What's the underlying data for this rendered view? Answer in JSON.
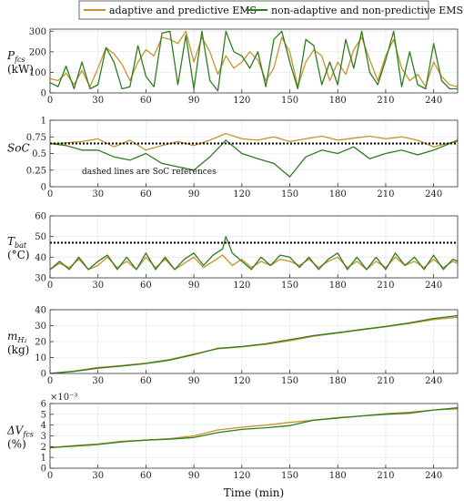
{
  "figure": {
    "xlabel": "Time (min)",
    "legend_position": "top-center",
    "legend": [
      {
        "name": "adaptive and predictive EMS",
        "color": "#c8932a"
      },
      {
        "name": "non-adaptive and non-predictive EMS",
        "color": "#2e7d1f"
      }
    ],
    "reference_color": "#000000",
    "grid": true
  },
  "chart_data": [
    {
      "type": "line",
      "id": "pfcs",
      "ylabel_main": "P",
      "ylabel_sub": "fcs",
      "ylabel_unit": "(kW)",
      "xlim": [
        0,
        255
      ],
      "ylim": [
        0,
        310
      ],
      "xticks": [
        0,
        30,
        60,
        90,
        120,
        150,
        180,
        210,
        240
      ],
      "yticks": [
        0,
        100,
        200,
        300
      ],
      "series": [
        {
          "name": "adaptive and predictive EMS",
          "x": [
            0,
            5,
            10,
            15,
            20,
            25,
            30,
            35,
            40,
            45,
            50,
            55,
            60,
            65,
            70,
            75,
            80,
            85,
            90,
            95,
            100,
            105,
            110,
            115,
            120,
            125,
            130,
            135,
            140,
            145,
            150,
            155,
            160,
            165,
            170,
            175,
            180,
            185,
            190,
            195,
            200,
            205,
            210,
            215,
            220,
            225,
            230,
            235,
            240,
            245,
            250,
            255
          ],
          "y": [
            70,
            60,
            95,
            40,
            110,
            30,
            120,
            220,
            190,
            140,
            60,
            150,
            210,
            180,
            270,
            260,
            240,
            300,
            150,
            270,
            200,
            90,
            180,
            120,
            150,
            200,
            160,
            60,
            120,
            270,
            200,
            30,
            150,
            210,
            180,
            60,
            150,
            90,
            210,
            270,
            160,
            60,
            180,
            260,
            120,
            60,
            90,
            30,
            150,
            80,
            40,
            30
          ]
        },
        {
          "name": "non-adaptive and non-predictive EMS",
          "x": [
            0,
            5,
            10,
            15,
            20,
            25,
            30,
            35,
            40,
            45,
            50,
            55,
            60,
            65,
            70,
            75,
            80,
            85,
            90,
            95,
            100,
            105,
            110,
            115,
            120,
            125,
            130,
            135,
            140,
            145,
            150,
            155,
            160,
            165,
            170,
            175,
            180,
            185,
            190,
            195,
            200,
            205,
            210,
            215,
            220,
            225,
            230,
            235,
            240,
            245,
            250,
            255
          ],
          "y": [
            50,
            30,
            130,
            20,
            150,
            20,
            40,
            220,
            150,
            20,
            30,
            230,
            80,
            30,
            290,
            300,
            40,
            280,
            20,
            300,
            60,
            10,
            300,
            200,
            180,
            120,
            200,
            30,
            260,
            300,
            150,
            20,
            260,
            230,
            40,
            150,
            40,
            260,
            120,
            300,
            100,
            40,
            160,
            300,
            30,
            200,
            40,
            20,
            240,
            60,
            20,
            20
          ]
        }
      ]
    },
    {
      "type": "line",
      "id": "soc",
      "ylabel_main": "SoC",
      "ylabel_sub": "",
      "ylabel_unit": "",
      "annotation": "dashed lines are SoC references",
      "xlim": [
        0,
        255
      ],
      "ylim": [
        0,
        1
      ],
      "xticks": [
        0,
        30,
        60,
        90,
        120,
        150,
        180,
        210,
        240
      ],
      "yticks": [
        0,
        0.25,
        0.5,
        0.75,
        1
      ],
      "ytick_labels": [
        "0",
        "0.25",
        "0.5",
        "0.75",
        "1"
      ],
      "reference_y": 0.65,
      "series": [
        {
          "name": "adaptive and predictive EMS",
          "x": [
            0,
            10,
            20,
            30,
            40,
            50,
            60,
            70,
            80,
            90,
            100,
            110,
            120,
            130,
            140,
            150,
            160,
            170,
            180,
            190,
            200,
            210,
            220,
            230,
            240,
            250,
            255
          ],
          "y": [
            0.65,
            0.66,
            0.68,
            0.72,
            0.6,
            0.7,
            0.55,
            0.62,
            0.68,
            0.62,
            0.7,
            0.8,
            0.72,
            0.7,
            0.75,
            0.68,
            0.72,
            0.76,
            0.7,
            0.73,
            0.76,
            0.72,
            0.75,
            0.7,
            0.6,
            0.66,
            0.68
          ]
        },
        {
          "name": "non-adaptive and non-predictive EMS",
          "x": [
            0,
            10,
            20,
            30,
            40,
            50,
            60,
            70,
            80,
            90,
            100,
            110,
            120,
            130,
            140,
            150,
            160,
            170,
            180,
            190,
            200,
            210,
            220,
            230,
            240,
            250,
            255
          ],
          "y": [
            0.65,
            0.62,
            0.55,
            0.55,
            0.45,
            0.4,
            0.5,
            0.35,
            0.3,
            0.25,
            0.45,
            0.7,
            0.5,
            0.42,
            0.35,
            0.15,
            0.45,
            0.55,
            0.5,
            0.6,
            0.42,
            0.5,
            0.55,
            0.48,
            0.55,
            0.65,
            0.7
          ]
        }
      ]
    },
    {
      "type": "line",
      "id": "tbat",
      "ylabel_main": "T",
      "ylabel_sub": "bat",
      "ylabel_unit": "(°C)",
      "xlim": [
        0,
        255
      ],
      "ylim": [
        30,
        60
      ],
      "xticks": [
        0,
        30,
        60,
        90,
        120,
        150,
        180,
        210,
        240
      ],
      "yticks": [
        30,
        40,
        50,
        60
      ],
      "reference_y": 47,
      "series": [
        {
          "name": "adaptive and predictive EMS",
          "x": [
            0,
            6,
            12,
            18,
            24,
            30,
            36,
            42,
            48,
            54,
            60,
            66,
            72,
            78,
            84,
            90,
            96,
            102,
            108,
            114,
            120,
            126,
            132,
            138,
            144,
            150,
            156,
            162,
            168,
            174,
            180,
            186,
            192,
            198,
            204,
            210,
            216,
            222,
            228,
            234,
            240,
            246,
            252,
            255
          ],
          "y": [
            34,
            37,
            35,
            39,
            34,
            36,
            40,
            35,
            38,
            34,
            40,
            35,
            39,
            34,
            37,
            40,
            35,
            38,
            41,
            36,
            39,
            35,
            38,
            36,
            39,
            38,
            36,
            39,
            35,
            38,
            40,
            35,
            38,
            34,
            38,
            35,
            40,
            36,
            38,
            35,
            39,
            35,
            38,
            37
          ]
        },
        {
          "name": "non-adaptive and non-predictive EMS",
          "x": [
            0,
            6,
            12,
            18,
            24,
            30,
            36,
            42,
            48,
            54,
            60,
            66,
            72,
            78,
            84,
            90,
            96,
            102,
            108,
            110,
            114,
            120,
            126,
            132,
            138,
            144,
            150,
            156,
            162,
            168,
            174,
            180,
            186,
            192,
            198,
            204,
            210,
            216,
            222,
            228,
            234,
            240,
            246,
            252,
            255
          ],
          "y": [
            34,
            38,
            34,
            40,
            34,
            38,
            41,
            34,
            40,
            34,
            42,
            34,
            40,
            34,
            39,
            42,
            36,
            41,
            44,
            50,
            42,
            38,
            34,
            40,
            36,
            41,
            40,
            35,
            40,
            34,
            39,
            42,
            34,
            40,
            34,
            40,
            34,
            42,
            36,
            40,
            34,
            41,
            34,
            39,
            38
          ]
        }
      ]
    },
    {
      "type": "line",
      "id": "mh2",
      "ylabel_main": "m",
      "ylabel_sub": "H₂",
      "ylabel_unit": "(kg)",
      "xlim": [
        0,
        255
      ],
      "ylim": [
        0,
        40
      ],
      "xticks": [
        0,
        30,
        60,
        90,
        120,
        150,
        180,
        210,
        240
      ],
      "yticks": [
        0,
        10,
        20,
        30,
        40
      ],
      "series": [
        {
          "name": "adaptive and predictive EMS",
          "x": [
            0,
            15,
            30,
            45,
            60,
            75,
            90,
            105,
            120,
            135,
            150,
            165,
            180,
            195,
            210,
            225,
            240,
            255
          ],
          "y": [
            0,
            1.5,
            3.8,
            5.0,
            6.5,
            8.8,
            12.2,
            15.5,
            16.6,
            18.3,
            20.5,
            23.4,
            25.4,
            27.4,
            29.3,
            31.4,
            33.8,
            35.3
          ]
        },
        {
          "name": "non-adaptive and non-predictive EMS",
          "x": [
            0,
            15,
            30,
            45,
            60,
            75,
            90,
            105,
            120,
            135,
            150,
            165,
            180,
            195,
            210,
            225,
            240,
            255
          ],
          "y": [
            0,
            1.3,
            3.3,
            4.7,
            6.2,
            8.4,
            11.8,
            15.8,
            16.9,
            18.6,
            21.2,
            23.8,
            25.6,
            27.6,
            29.5,
            31.8,
            34.5,
            36.3
          ]
        }
      ]
    },
    {
      "type": "line",
      "id": "dvfcs",
      "ylabel_main": "ΔV",
      "ylabel_sub": "fcs",
      "ylabel_unit": "(%)",
      "exponent": "×10⁻³",
      "xlim": [
        0,
        255
      ],
      "ylim": [
        0,
        6
      ],
      "xticks": [
        0,
        30,
        60,
        90,
        120,
        150,
        180,
        210,
        240
      ],
      "yticks": [
        0,
        1,
        2,
        3,
        4,
        5,
        6
      ],
      "series": [
        {
          "name": "adaptive and predictive EMS",
          "x": [
            0,
            15,
            30,
            45,
            60,
            75,
            90,
            105,
            120,
            135,
            150,
            165,
            180,
            195,
            210,
            225,
            240,
            255
          ],
          "y": [
            1.9,
            2.1,
            2.25,
            2.5,
            2.6,
            2.75,
            3.0,
            3.55,
            3.8,
            4.0,
            4.25,
            4.45,
            4.7,
            4.85,
            5.05,
            5.2,
            5.4,
            5.5
          ]
        },
        {
          "name": "non-adaptive and non-predictive EMS",
          "x": [
            0,
            15,
            30,
            45,
            60,
            75,
            90,
            105,
            120,
            135,
            150,
            165,
            180,
            195,
            210,
            225,
            240,
            255
          ],
          "y": [
            1.9,
            2.05,
            2.2,
            2.45,
            2.6,
            2.7,
            2.85,
            3.3,
            3.6,
            3.75,
            3.95,
            4.45,
            4.65,
            4.85,
            5.0,
            5.1,
            5.4,
            5.6
          ]
        }
      ]
    }
  ]
}
